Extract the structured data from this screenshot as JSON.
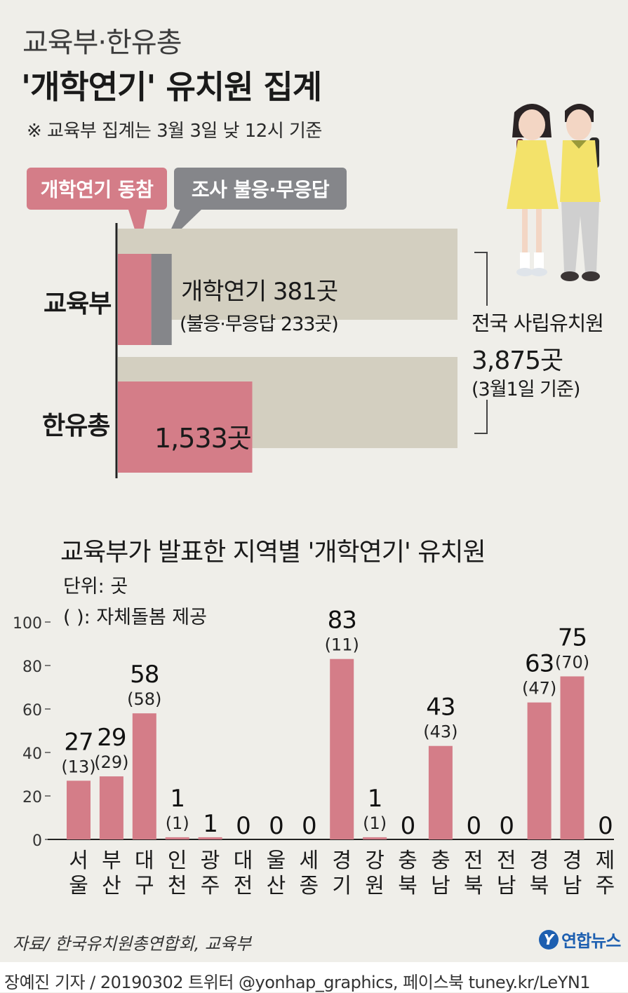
{
  "header": {
    "title_line1": "교육부·한유총",
    "title_line2": "'개학연기' 유치원 집계",
    "note": "※ 교육부 집계는 3월 3일 낮 12시 기준"
  },
  "legend": {
    "delay_label": "개학연기 동참",
    "delay_color": "#d47d88",
    "no_response_label": "조사 불응·무응답",
    "no_response_color": "#85868a",
    "total_color": "#d3cfc0"
  },
  "summary": {
    "moe_label": "교육부",
    "moe_text": "개학연기 381곳",
    "moe_subtext": "(불응·무응답 233곳)",
    "moe_delay": 381,
    "moe_no_response": 233,
    "kfa_label": "한유총",
    "kfa_text": "1,533곳",
    "kfa_value": 1533,
    "total_label": "전국 사립유치원",
    "total_value_text": "3,875곳",
    "total_date": "(3월1일 기준)",
    "total_value": 3875
  },
  "chart_title": "교육부가 발표한 지역별 '개학연기' 유치원",
  "unit_label": "단위: 곳",
  "paren_note": "( ): 자체돌봄 제공",
  "chart_data": {
    "type": "bar",
    "categories": [
      "서울",
      "부산",
      "대구",
      "인천",
      "광주",
      "대전",
      "울산",
      "세종",
      "경기",
      "강원",
      "충북",
      "충남",
      "전북",
      "전남",
      "경북",
      "경남",
      "제주"
    ],
    "series": [
      {
        "values": [
          27,
          29,
          58,
          1,
          1,
          0,
          0,
          0,
          83,
          1,
          0,
          43,
          0,
          0,
          63,
          75,
          0
        ]
      },
      {
        "values": [
          13,
          29,
          58,
          1,
          null,
          null,
          null,
          null,
          11,
          1,
          null,
          43,
          null,
          null,
          47,
          70,
          null
        ]
      }
    ],
    "value_labels": [
      "27",
      "29",
      "58",
      "1",
      "1",
      "0",
      "0",
      "0",
      "83",
      "1",
      "0",
      "43",
      "0",
      "0",
      "63",
      "75",
      "0"
    ],
    "paren_labels": [
      "(13)",
      "(29)",
      "(58)",
      "(1)",
      "",
      "",
      "",
      "",
      "(11)",
      "(1)",
      "",
      "(43)",
      "",
      "",
      "(47)",
      "(70)",
      ""
    ],
    "yticks": [
      "0",
      "20",
      "40",
      "60",
      "80",
      "100"
    ],
    "ylim": [
      0,
      100
    ],
    "bar_color": "#d47d88"
  },
  "source": "자료/ 한국유치원총연합회, 교육부",
  "logo_mark": "Y",
  "logo_text": "연합뉴스",
  "footer": "장예진 기자 / 20190302 트위터 @yonhap_graphics, 페이스북 tuney.kr/LeYN1"
}
